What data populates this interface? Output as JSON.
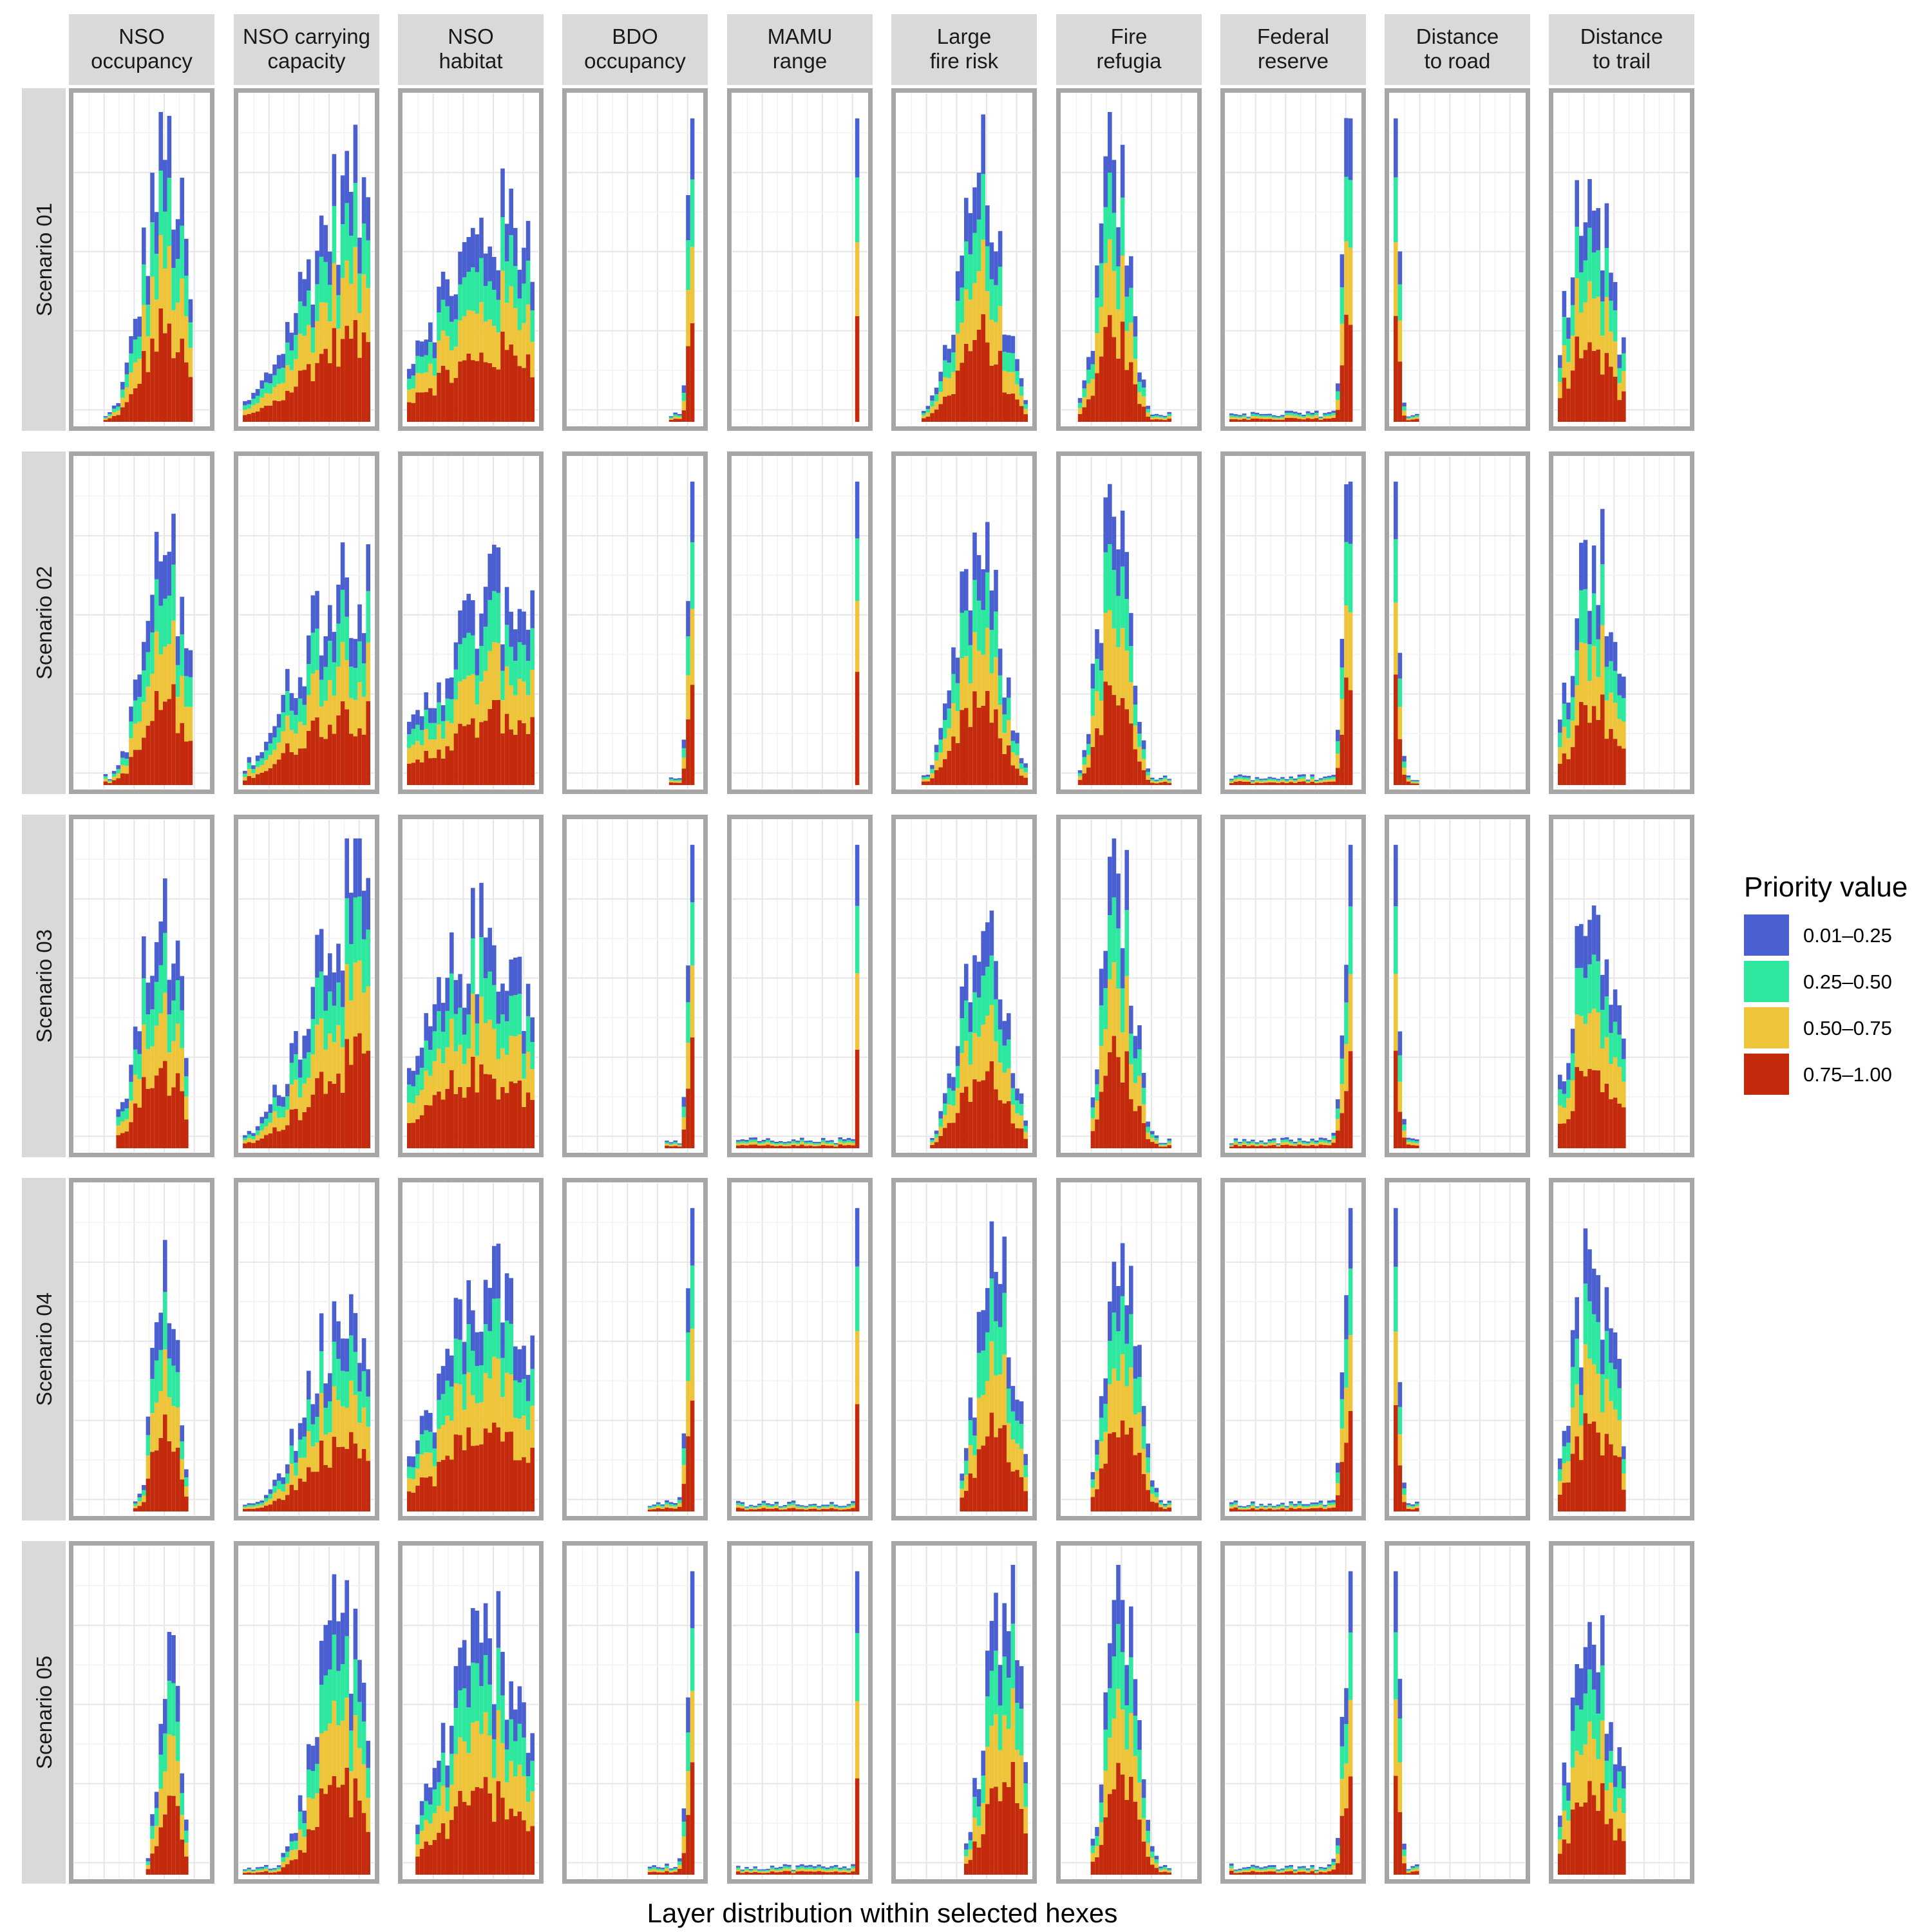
{
  "chart_data": {
    "type": "bar",
    "subtype": "faceted stacked histogram",
    "xlabel": "Layer distribution within selected hexes",
    "ylabel": "",
    "grid": true,
    "legend": {
      "title": "Priority value",
      "position": "right",
      "entries": [
        {
          "label": "0.01–0.25",
          "color": "#4a5fd0"
        },
        {
          "label": "0.25–0.50",
          "color": "#2ee8a0"
        },
        {
          "label": "0.50–0.75",
          "color": "#eec43a"
        },
        {
          "label": "0.75–1.00",
          "color": "#c42a0c"
        }
      ]
    },
    "columns": [
      {
        "key": "nso_occupancy",
        "lines": [
          "NSO",
          "occupancy"
        ]
      },
      {
        "key": "nso_carrying_capacity",
        "lines": [
          "NSO carrying",
          "capacity"
        ]
      },
      {
        "key": "nso_habitat",
        "lines": [
          "NSO",
          "habitat"
        ]
      },
      {
        "key": "bdo_occupancy",
        "lines": [
          "BDO",
          "occupancy"
        ]
      },
      {
        "key": "mamu_range",
        "lines": [
          "MAMU",
          "range"
        ]
      },
      {
        "key": "large_fire_risk",
        "lines": [
          "Large",
          "fire risk"
        ]
      },
      {
        "key": "fire_refugia",
        "lines": [
          "Fire",
          "refugia"
        ]
      },
      {
        "key": "federal_reserve",
        "lines": [
          "Federal",
          "reserve"
        ]
      },
      {
        "key": "distance_to_road",
        "lines": [
          "Distance",
          "to road"
        ]
      },
      {
        "key": "distance_to_trail",
        "lines": [
          "Distance",
          "to trail"
        ]
      }
    ],
    "rows": [
      "Scenario 01",
      "Scenario 02",
      "Scenario 03",
      "Scenario 04",
      "Scenario 05"
    ],
    "bin_count": 30,
    "ylim": [
      0,
      1
    ],
    "profiles": {
      "nso_occupancy": [
        {
          "peak": 20,
          "height": 0.82,
          "spread": 5,
          "lo": 6,
          "hi": 26
        },
        {
          "peak": 20,
          "height": 0.72,
          "spread": 5,
          "lo": 6,
          "hi": 26
        },
        {
          "peak": 19,
          "height": 0.71,
          "spread": 5,
          "lo": 9,
          "hi": 25
        },
        {
          "peak": 20,
          "height": 0.85,
          "spread": 2.5,
          "lo": 13,
          "hi": 25
        },
        {
          "peak": 21,
          "height": 0.76,
          "spread": 2.3,
          "lo": 16,
          "hi": 25
        }
      ],
      "nso_carrying_capacity": [
        {
          "peak": 25,
          "height": 0.72,
          "spread": 11,
          "lo": 0,
          "hi": 29
        },
        {
          "peak": 24,
          "height": 0.65,
          "spread": 11,
          "lo": 0,
          "hi": 29
        },
        {
          "peak": 25,
          "height": 0.8,
          "spread": 10,
          "lo": 0,
          "hi": 29
        },
        {
          "peak": 25,
          "height": 0.68,
          "spread": 9,
          "lo": 0,
          "hi": 29
        },
        {
          "peak": 23,
          "height": 0.82,
          "spread": 6,
          "lo": 0,
          "hi": 29
        }
      ],
      "nso_habitat": [
        {
          "peak": 23,
          "height": 0.62,
          "spread": 16,
          "lo": 0,
          "hi": 29
        },
        {
          "peak": 23,
          "height": 0.62,
          "spread": 14,
          "lo": 0,
          "hi": 29
        },
        {
          "peak": 18,
          "height": 0.66,
          "spread": 12,
          "lo": 0,
          "hi": 29
        },
        {
          "peak": 19,
          "height": 0.7,
          "spread": 11,
          "lo": 0,
          "hi": 29
        },
        {
          "peak": 19,
          "height": 0.74,
          "spread": 10,
          "lo": 2,
          "hi": 29
        }
      ],
      "bdo_occupancy": [
        {
          "peak": 28,
          "height": 0.95,
          "spread": 1.0,
          "lo": 23,
          "hi": 28
        },
        {
          "peak": 28,
          "height": 0.95,
          "spread": 1.0,
          "lo": 23,
          "hi": 28
        },
        {
          "peak": 28,
          "height": 0.95,
          "spread": 1.0,
          "lo": 22,
          "hi": 28
        },
        {
          "peak": 28,
          "height": 0.95,
          "spread": 1.2,
          "lo": 18,
          "hi": 28
        },
        {
          "peak": 28,
          "height": 0.95,
          "spread": 1.2,
          "lo": 18,
          "hi": 28
        }
      ],
      "mamu_range": [
        {
          "peak": 28,
          "height": 0.95,
          "spread": 0.3,
          "lo": 28,
          "hi": 28
        },
        {
          "peak": 28,
          "height": 0.95,
          "spread": 0.3,
          "lo": 28,
          "hi": 28
        },
        {
          "peak": 28,
          "height": 0.95,
          "spread": 0.3,
          "lo": 0,
          "hi": 28
        },
        {
          "peak": 28,
          "height": 0.95,
          "spread": 0.3,
          "lo": 0,
          "hi": 28
        },
        {
          "peak": 28,
          "height": 0.95,
          "spread": 0.3,
          "lo": 0,
          "hi": 28
        }
      ],
      "large_fire_risk": [
        {
          "peak": 18,
          "height": 0.78,
          "spread": 5,
          "lo": 5,
          "hi": 29
        },
        {
          "peak": 18,
          "height": 0.72,
          "spread": 5,
          "lo": 5,
          "hi": 29
        },
        {
          "peak": 19,
          "height": 0.68,
          "spread": 5,
          "lo": 7,
          "hi": 29
        },
        {
          "peak": 22,
          "height": 0.75,
          "spread": 4.5,
          "lo": 14,
          "hi": 29
        },
        {
          "peak": 24,
          "height": 0.85,
          "spread": 4.5,
          "lo": 15,
          "hi": 29
        }
      ],
      "fire_refugia": [
        {
          "peak": 11,
          "height": 0.82,
          "spread": 3.5,
          "lo": 3,
          "hi": 24
        },
        {
          "peak": 11,
          "height": 0.84,
          "spread": 3.5,
          "lo": 3,
          "hi": 24
        },
        {
          "peak": 12,
          "height": 0.86,
          "spread": 3.5,
          "lo": 6,
          "hi": 24
        },
        {
          "peak": 13,
          "height": 0.84,
          "spread": 3.5,
          "lo": 6,
          "hi": 24
        },
        {
          "peak": 13,
          "height": 0.86,
          "spread": 3.5,
          "lo": 6,
          "hi": 24
        }
      ],
      "federal_reserve": [
        {
          "peak": 28,
          "height": 0.95,
          "spread": 1.6,
          "lo": 0,
          "hi": 28
        },
        {
          "peak": 28,
          "height": 0.95,
          "spread": 1.6,
          "lo": 0,
          "hi": 28
        },
        {
          "peak": 28,
          "height": 0.95,
          "spread": 1.6,
          "lo": 0,
          "hi": 28
        },
        {
          "peak": 28,
          "height": 0.95,
          "spread": 1.6,
          "lo": 0,
          "hi": 28
        },
        {
          "peak": 28,
          "height": 0.95,
          "spread": 1.6,
          "lo": 0,
          "hi": 28
        }
      ],
      "distance_to_road": [
        {
          "peak": 0,
          "height": 0.95,
          "spread": 0.9,
          "lo": 0,
          "hi": 5
        },
        {
          "peak": 0,
          "height": 0.95,
          "spread": 0.9,
          "lo": 0,
          "hi": 5
        },
        {
          "peak": 0,
          "height": 0.95,
          "spread": 0.9,
          "lo": 0,
          "hi": 5
        },
        {
          "peak": 0,
          "height": 0.95,
          "spread": 0.9,
          "lo": 0,
          "hi": 5
        },
        {
          "peak": 0,
          "height": 0.95,
          "spread": 0.9,
          "lo": 0,
          "hi": 5
        }
      ],
      "distance_to_trail": [
        {
          "peak": 7,
          "height": 0.76,
          "spread": 5,
          "lo": 0,
          "hi": 15
        },
        {
          "peak": 8,
          "height": 0.75,
          "spread": 5,
          "lo": 0,
          "hi": 15
        },
        {
          "peak": 8,
          "height": 0.76,
          "spread": 5,
          "lo": 0,
          "hi": 15
        },
        {
          "peak": 8,
          "height": 0.76,
          "spread": 5,
          "lo": 0,
          "hi": 15
        },
        {
          "peak": 8,
          "height": 0.72,
          "spread": 5,
          "lo": 0,
          "hi": 15
        }
      ]
    }
  }
}
